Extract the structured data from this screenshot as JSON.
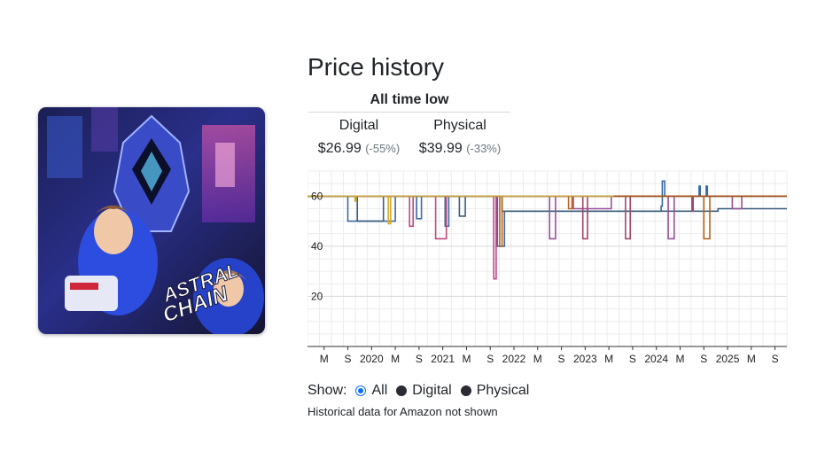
{
  "game": {
    "cover_icon": "astral-chain-cover-art",
    "logo_text": "ASTRAL CHAIN"
  },
  "header": {
    "title": "Price history"
  },
  "all_time_low": {
    "heading": "All time low",
    "digital": {
      "label": "Digital",
      "price": "$26.99",
      "discount": "(-55%)"
    },
    "physical": {
      "label": "Physical",
      "price": "$39.99",
      "discount": "(-33%)"
    }
  },
  "filter": {
    "label": "Show:",
    "options": [
      {
        "label": "All",
        "selected": true
      },
      {
        "label": "Digital",
        "selected": false
      },
      {
        "label": "Physical",
        "selected": false
      }
    ],
    "accent_color": "#0d6efd"
  },
  "note": "Historical data for Amazon not shown",
  "chart_data": {
    "type": "line",
    "ylim": [
      0,
      70
    ],
    "y_ticks": [
      20,
      40,
      60
    ],
    "x_ticks": [
      "M",
      "S",
      "2020",
      "M",
      "S",
      "2021",
      "M",
      "S",
      "2022",
      "M",
      "S",
      "2023",
      "M",
      "S",
      "2024",
      "M",
      "S",
      "2025",
      "M",
      "S"
    ],
    "xlim": [
      0,
      20.2
    ],
    "grid": true,
    "series": [
      {
        "color": "#3b6aa8",
        "points": [
          [
            0,
            59.99
          ],
          [
            1.7,
            59.99
          ],
          [
            1.7,
            49.99
          ],
          [
            3.7,
            49.99
          ],
          [
            3.7,
            59.99
          ],
          [
            4.6,
            59.99
          ],
          [
            4.6,
            50.99
          ],
          [
            4.8,
            50.99
          ],
          [
            4.8,
            59.99
          ],
          [
            5.8,
            59.99
          ],
          [
            5.8,
            47.99
          ],
          [
            5.95,
            47.99
          ],
          [
            5.95,
            59.99
          ],
          [
            8,
            59.99
          ],
          [
            8,
            39.99
          ],
          [
            8.3,
            39.99
          ],
          [
            8.3,
            53.99
          ],
          [
            14.9,
            53.99
          ],
          [
            14.9,
            55.99
          ],
          [
            14.95,
            55.99
          ],
          [
            14.95,
            65.99
          ],
          [
            15.05,
            65.99
          ],
          [
            15.05,
            59.99
          ],
          [
            16.5,
            59.99
          ],
          [
            16.5,
            63.99
          ],
          [
            16.55,
            63.99
          ],
          [
            16.55,
            59.99
          ],
          [
            16.8,
            59.99
          ],
          [
            16.8,
            63.99
          ],
          [
            16.85,
            63.99
          ],
          [
            16.85,
            59.99
          ],
          [
            20.2,
            59.99
          ]
        ]
      },
      {
        "color": "#3a5f7a",
        "points": [
          [
            0,
            59.99
          ],
          [
            2.1,
            59.99
          ],
          [
            2.1,
            49.99
          ],
          [
            3.2,
            49.99
          ],
          [
            3.2,
            59.99
          ],
          [
            6.4,
            59.99
          ],
          [
            6.4,
            51.99
          ],
          [
            6.65,
            51.99
          ],
          [
            6.65,
            59.99
          ],
          [
            8.2,
            59.99
          ],
          [
            8.2,
            53.99
          ],
          [
            17.3,
            53.99
          ],
          [
            17.3,
            54.99
          ],
          [
            20.2,
            54.99
          ]
        ]
      },
      {
        "color": "#c0497e",
        "points": [
          [
            0,
            59.99
          ],
          [
            4.3,
            59.99
          ],
          [
            4.3,
            47.99
          ],
          [
            4.45,
            47.99
          ],
          [
            4.45,
            59.99
          ],
          [
            5.4,
            59.99
          ],
          [
            5.4,
            42.99
          ],
          [
            5.85,
            42.99
          ],
          [
            5.85,
            59.99
          ],
          [
            7.85,
            59.99
          ],
          [
            7.85,
            26.99
          ],
          [
            7.95,
            26.99
          ],
          [
            7.95,
            59.99
          ],
          [
            20.2,
            59.99
          ]
        ]
      },
      {
        "color": "#9b4f9b",
        "points": [
          [
            0,
            59.99
          ],
          [
            10.2,
            59.99
          ],
          [
            10.2,
            42.99
          ],
          [
            10.45,
            42.99
          ],
          [
            10.45,
            59.99
          ],
          [
            11.2,
            59.99
          ],
          [
            11.2,
            54.99
          ],
          [
            12.8,
            54.99
          ],
          [
            12.8,
            59.99
          ],
          [
            15.2,
            59.99
          ],
          [
            15.2,
            42.99
          ],
          [
            15.45,
            42.99
          ],
          [
            15.45,
            59.99
          ],
          [
            17.9,
            59.99
          ],
          [
            17.9,
            54.99
          ],
          [
            18.3,
            54.99
          ],
          [
            18.3,
            59.99
          ],
          [
            20.2,
            59.99
          ]
        ]
      },
      {
        "color": "#b8651a",
        "points": [
          [
            0,
            59.99
          ],
          [
            8.1,
            59.99
          ],
          [
            8.1,
            39.99
          ],
          [
            8.2,
            39.99
          ],
          [
            8.2,
            59.99
          ],
          [
            11,
            59.99
          ],
          [
            11,
            54.99
          ],
          [
            11.15,
            54.99
          ],
          [
            11.15,
            59.99
          ],
          [
            16.7,
            59.99
          ],
          [
            16.7,
            42.99
          ],
          [
            16.95,
            42.99
          ],
          [
            16.95,
            59.99
          ],
          [
            20.2,
            59.99
          ]
        ]
      },
      {
        "color": "#a0466e",
        "points": [
          [
            0,
            59.99
          ],
          [
            11.6,
            59.99
          ],
          [
            11.6,
            42.99
          ],
          [
            11.8,
            42.99
          ],
          [
            11.8,
            59.99
          ],
          [
            13.4,
            59.99
          ],
          [
            13.4,
            42.99
          ],
          [
            13.6,
            42.99
          ],
          [
            13.6,
            59.99
          ],
          [
            16.2,
            59.99
          ],
          [
            16.2,
            53.99
          ],
          [
            16.25,
            53.99
          ],
          [
            16.25,
            59.99
          ],
          [
            20.2,
            59.99
          ]
        ]
      },
      {
        "color": "#d4a82a",
        "points": [
          [
            0,
            59.99
          ],
          [
            2.0,
            59.99
          ],
          [
            2.0,
            57.99
          ],
          [
            2.05,
            57.99
          ],
          [
            2.05,
            59.99
          ],
          [
            3.4,
            59.99
          ],
          [
            3.4,
            48.99
          ],
          [
            3.5,
            48.99
          ],
          [
            3.5,
            59.99
          ],
          [
            20.2,
            59.99
          ]
        ]
      },
      {
        "color": "#5aa83a",
        "points": [
          [
            0,
            59.99
          ],
          [
            1.2,
            59.99
          ],
          [
            20.2,
            59.99
          ]
        ]
      },
      {
        "color": "#c4a040",
        "points": [
          [
            0,
            59.99
          ],
          [
            20.2,
            59.99
          ]
        ]
      },
      {
        "color": "#a3501f",
        "points": [
          [
            12.9,
            59.99
          ],
          [
            20.2,
            59.99
          ]
        ]
      }
    ]
  }
}
